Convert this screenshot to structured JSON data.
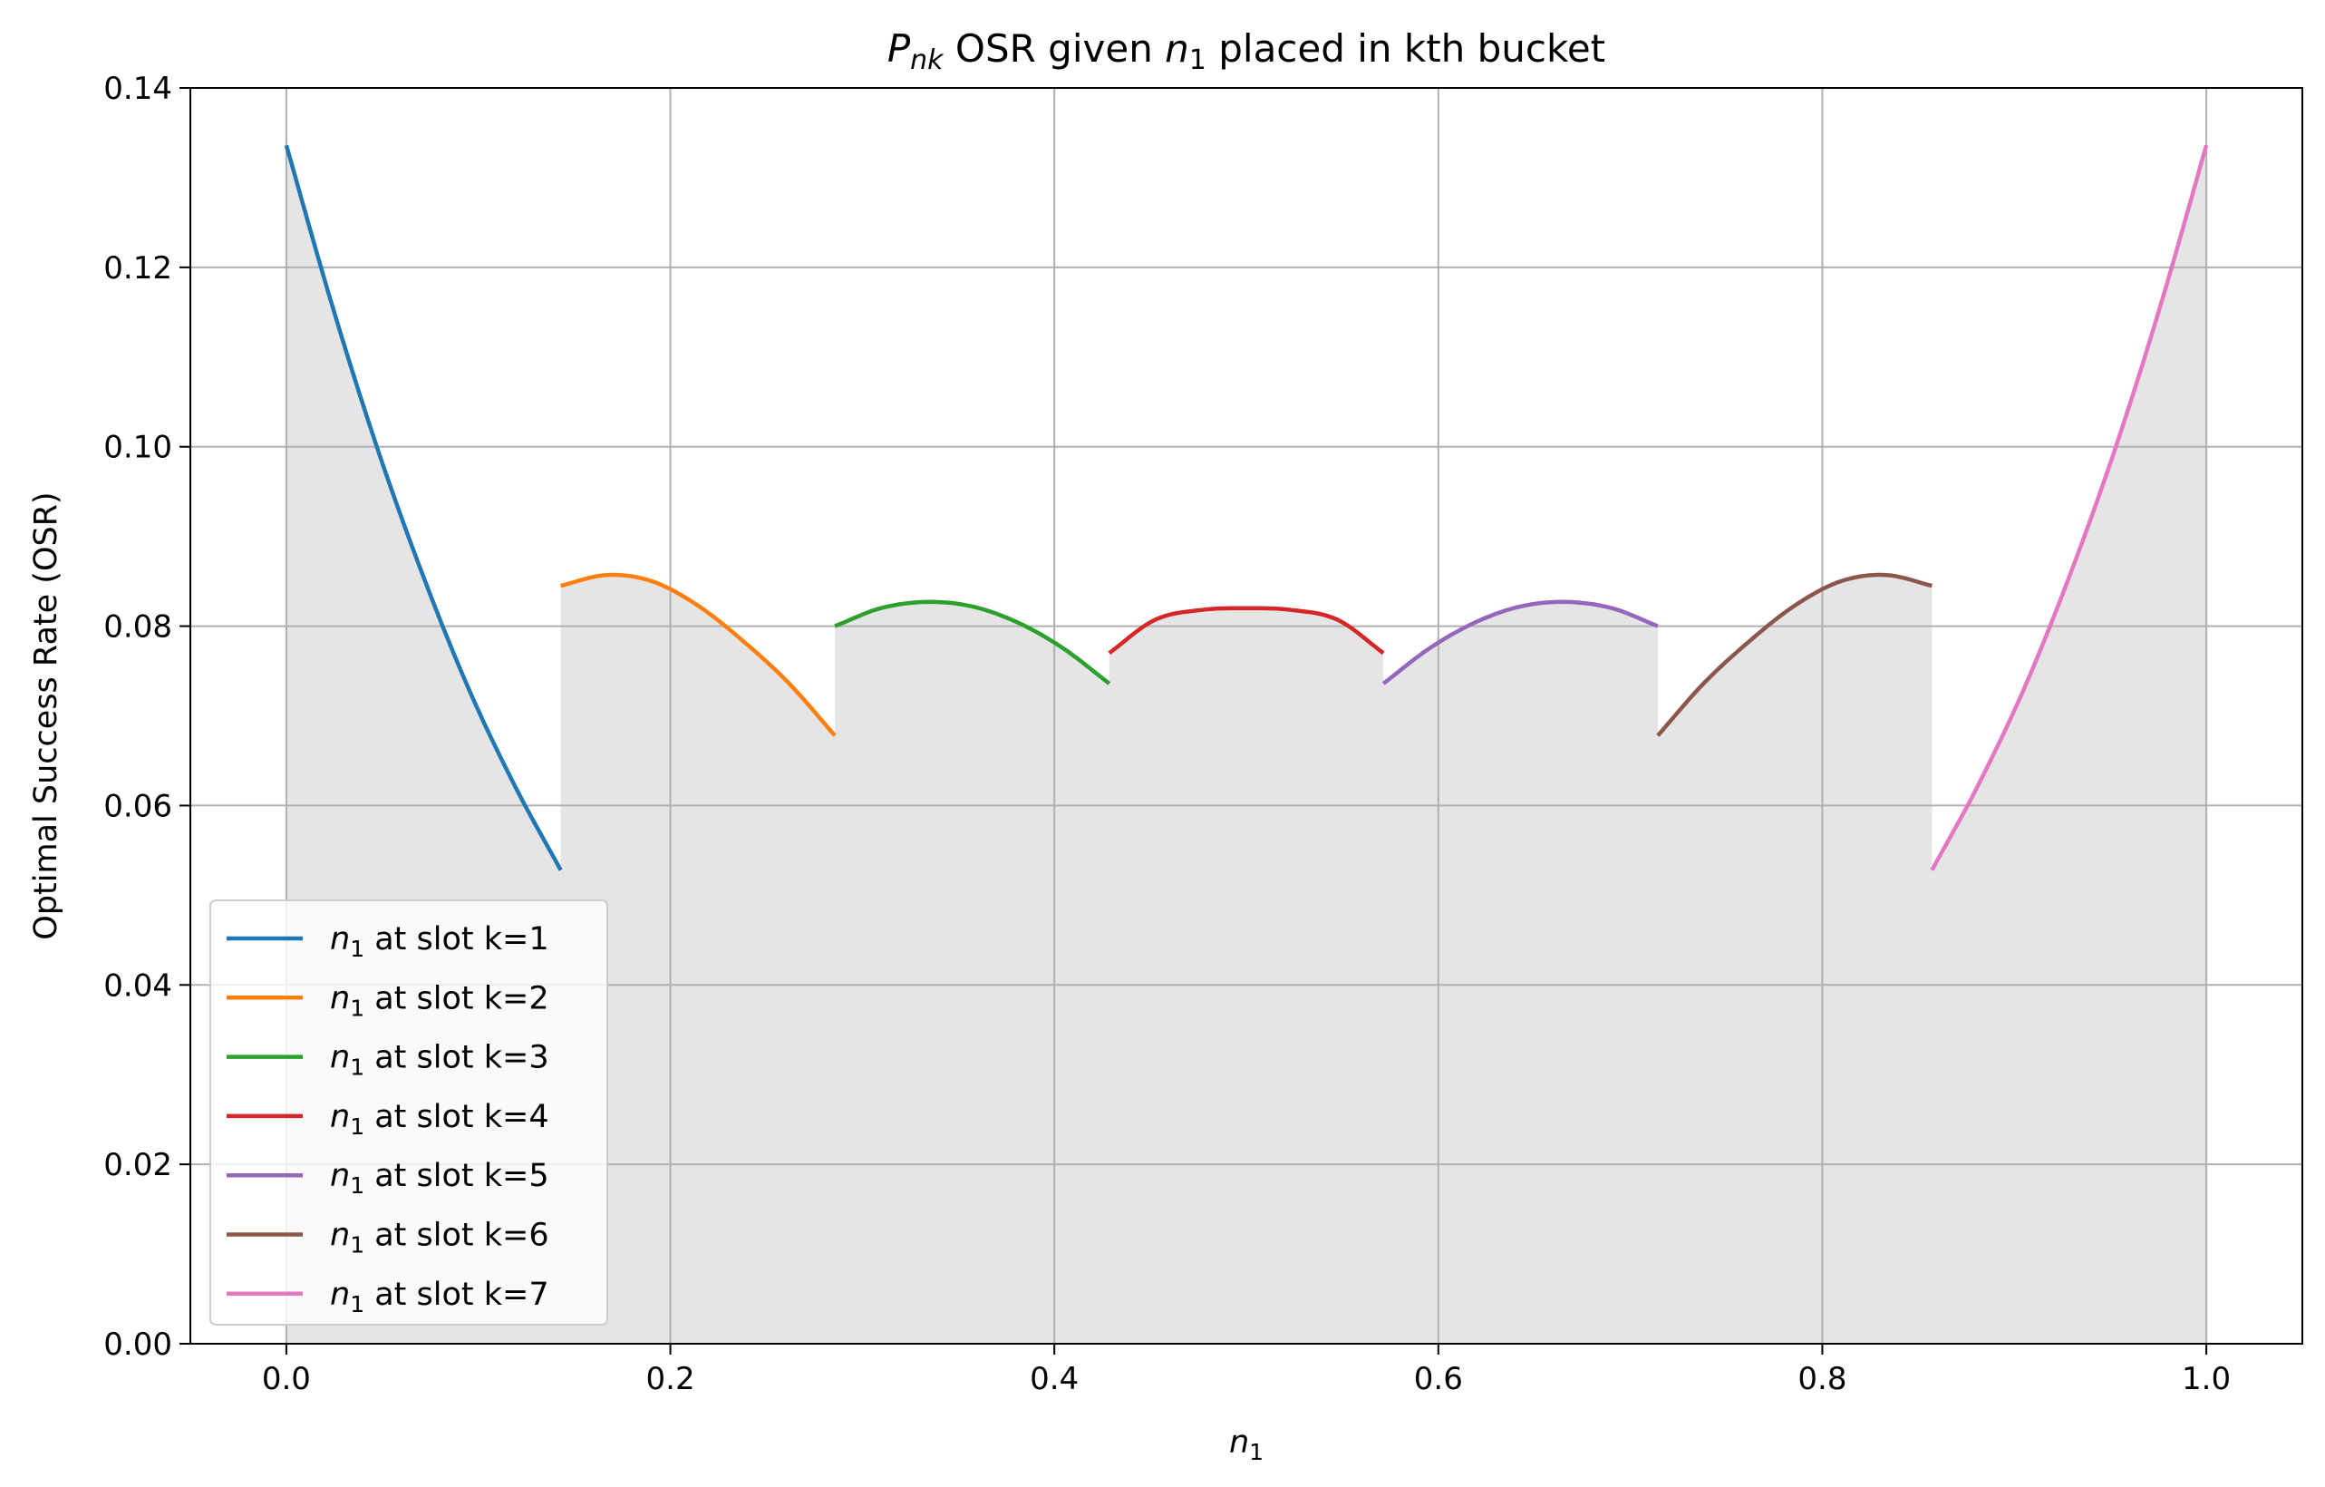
{
  "chart_data": {
    "type": "line",
    "title": {
      "prefix": "P",
      "prefix_sub": "nk",
      "mid": " OSR given ",
      "var": "n",
      "var_sub": "1",
      "suffix": " placed in kth bucket"
    },
    "xlabel": {
      "var": "n",
      "sub": "1"
    },
    "ylabel": "Optimal Success Rate (OSR)",
    "xlim": [
      -0.05,
      1.05
    ],
    "ylim": [
      0,
      0.14
    ],
    "xticks": [
      0.0,
      0.2,
      0.4,
      0.6,
      0.8,
      1.0
    ],
    "xtick_labels": [
      "0.0",
      "0.2",
      "0.4",
      "0.6",
      "0.8",
      "1.0"
    ],
    "yticks": [
      0.0,
      0.02,
      0.04,
      0.06,
      0.08,
      0.1,
      0.12,
      0.14
    ],
    "ytick_labels": [
      "0.00",
      "0.02",
      "0.04",
      "0.06",
      "0.08",
      "0.10",
      "0.12",
      "0.14"
    ],
    "grid": true,
    "legend_position": "lower-left",
    "fill_color": "#e5e5e5",
    "series": [
      {
        "legend": {
          "var": "n",
          "sub": "1",
          "text": " at slot k=1"
        },
        "color": "#1f77b4",
        "x": [
          0.0,
          0.0238,
          0.0476,
          0.0714,
          0.0952,
          0.119,
          0.1429
        ],
        "y": [
          0.1336,
          0.1158,
          0.0997,
          0.0855,
          0.0729,
          0.0622,
          0.0528
        ]
      },
      {
        "legend": {
          "var": "n",
          "sub": "1",
          "text": " at slot k=2"
        },
        "color": "#ff7f0e",
        "x": [
          0.1429,
          0.1667,
          0.1905,
          0.2143,
          0.2381,
          0.2619,
          0.2857
        ],
        "y": [
          0.0845,
          0.0857,
          0.085,
          0.0823,
          0.0783,
          0.0736,
          0.0678
        ]
      },
      {
        "legend": {
          "var": "n",
          "sub": "1",
          "text": " at slot k=3"
        },
        "color": "#2ca02c",
        "x": [
          0.2857,
          0.3095,
          0.3333,
          0.3571,
          0.381,
          0.4048,
          0.4286
        ],
        "y": [
          0.08,
          0.082,
          0.0827,
          0.0822,
          0.0804,
          0.0775,
          0.0736
        ]
      },
      {
        "legend": {
          "var": "n",
          "sub": "1",
          "text": " at slot k=4"
        },
        "color": "#d62728",
        "x": [
          0.4286,
          0.4524,
          0.4762,
          0.5,
          0.5238,
          0.5476,
          0.5714
        ],
        "y": [
          0.077,
          0.0807,
          0.0818,
          0.082,
          0.0818,
          0.0807,
          0.077
        ]
      },
      {
        "legend": {
          "var": "n",
          "sub": "1",
          "text": " at slot k=5"
        },
        "color": "#9467bd",
        "x": [
          0.5714,
          0.5952,
          0.619,
          0.6429,
          0.6667,
          0.6905,
          0.7143
        ],
        "y": [
          0.0736,
          0.0775,
          0.0804,
          0.0822,
          0.0827,
          0.082,
          0.08
        ]
      },
      {
        "legend": {
          "var": "n",
          "sub": "1",
          "text": " at slot k=6"
        },
        "color": "#8c564b",
        "x": [
          0.7143,
          0.7381,
          0.7619,
          0.7857,
          0.8095,
          0.8333,
          0.8571
        ],
        "y": [
          0.0678,
          0.0736,
          0.0783,
          0.0823,
          0.085,
          0.0857,
          0.0845
        ]
      },
      {
        "legend": {
          "var": "n",
          "sub": "1",
          "text": " at slot k=7"
        },
        "color": "#e377c2",
        "x": [
          0.8571,
          0.881,
          0.9048,
          0.9286,
          0.9524,
          0.9762,
          1.0
        ],
        "y": [
          0.0528,
          0.0622,
          0.0729,
          0.0855,
          0.0997,
          0.1158,
          0.1336
        ]
      }
    ]
  }
}
